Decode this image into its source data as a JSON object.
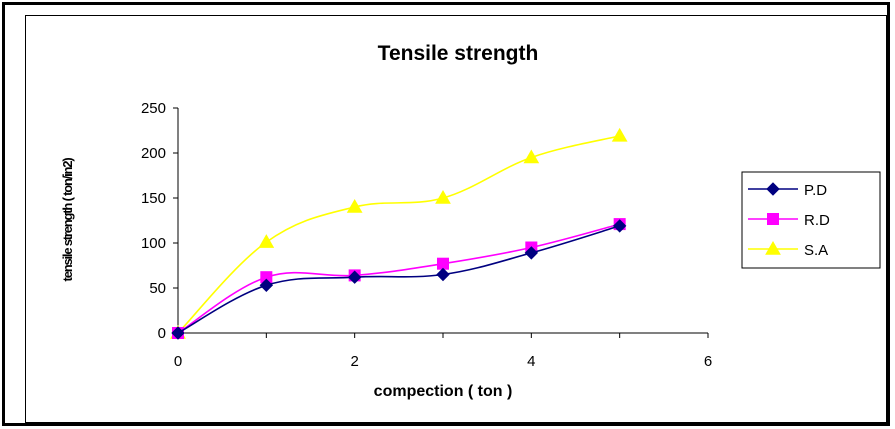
{
  "chart_data": {
    "type": "line",
    "title": "Tensile strength",
    "xlabel": "compection ( ton )",
    "ylabel": "tensile strength ( ton/in2)",
    "xlim": [
      0,
      6
    ],
    "ylim": [
      0,
      250
    ],
    "x_ticks": [
      "0",
      "2",
      "4",
      "6"
    ],
    "y_ticks": [
      "0",
      "50",
      "100",
      "150",
      "200",
      "250"
    ],
    "grid": false,
    "legend_position": "right",
    "x": [
      0,
      1,
      2,
      3,
      4,
      5
    ],
    "series": [
      {
        "name": "P.D",
        "values": [
          0,
          53,
          62,
          65,
          89,
          119
        ],
        "color": "#000080",
        "marker": "diamond"
      },
      {
        "name": "R.D",
        "values": [
          0,
          62,
          64,
          77,
          95,
          121
        ],
        "color": "#FF00FF",
        "marker": "square"
      },
      {
        "name": "S.A",
        "values": [
          0,
          101,
          140,
          150,
          195,
          219
        ],
        "color": "#FFFF00",
        "marker": "triangle"
      }
    ]
  }
}
